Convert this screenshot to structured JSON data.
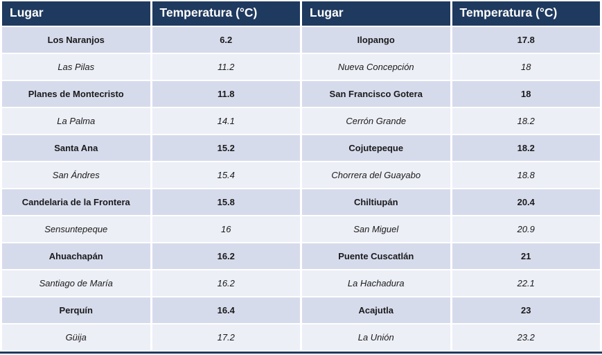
{
  "chart_data": {
    "type": "table",
    "columns": [
      "Lugar",
      "Temperatura (°C)",
      "Lugar",
      "Temperatura (°C)"
    ],
    "rows": [
      [
        "Los Naranjos",
        "6.2",
        "Ilopango",
        "17.8"
      ],
      [
        "Las Pilas",
        "11.2",
        "Nueva Concepción",
        "18"
      ],
      [
        "Planes de Montecristo",
        "11.8",
        "San Francisco Gotera",
        "18"
      ],
      [
        "La Palma",
        "14.1",
        "Cerrón Grande",
        "18.2"
      ],
      [
        "Santa Ana",
        "15.2",
        "Cojutepeque",
        "18.2"
      ],
      [
        "San Ándres",
        "15.4",
        "Chorrera del Guayabo",
        "18.8"
      ],
      [
        "Candelaria de la Frontera",
        "15.8",
        "Chiltiupán",
        "20.4"
      ],
      [
        "Sensuntepeque",
        "16",
        "San Miguel",
        "20.9"
      ],
      [
        "Ahuachapán",
        "16.2",
        "Puente Cuscatlán",
        "21"
      ],
      [
        "Santiago de María",
        "16.2",
        "La Hachadura",
        "22.1"
      ],
      [
        "Perquín",
        "16.4",
        "Acajutla",
        "23"
      ],
      [
        "Güija",
        "17.2",
        "La Unión",
        "23.2"
      ]
    ],
    "title": "",
    "layout": {
      "banding": "alternating bold / italic rows",
      "header_style": "dark navy bar with white bold text",
      "grid": "white gaps between cells, thick navy bottom border"
    }
  },
  "colors": {
    "header_bg": "#1F3A5F",
    "header_text": "#FFFFFF",
    "band_odd_bg": "#D6DBEC",
    "band_even_bg": "#EDEFF7",
    "body_text": "#1A1A1A",
    "bottom_border": "#1F3A5F",
    "gap": "#FFFFFF"
  }
}
